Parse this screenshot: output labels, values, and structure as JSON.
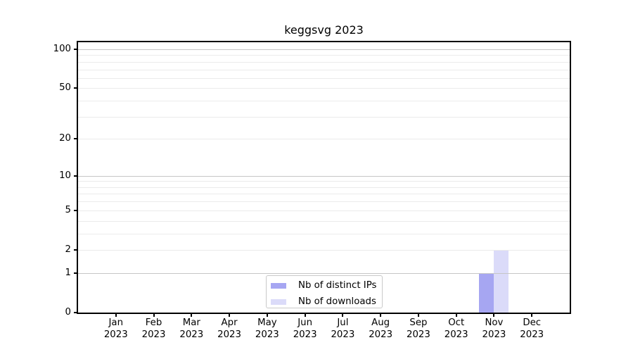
{
  "chart_data": {
    "type": "bar",
    "title": "keggsvg 2023",
    "categories": [
      "Jan 2023",
      "Feb 2023",
      "Mar 2023",
      "Apr 2023",
      "May 2023",
      "Jun 2023",
      "Jul 2023",
      "Aug 2023",
      "Sep 2023",
      "Oct 2023",
      "Nov 2023",
      "Dec 2023"
    ],
    "months": [
      "Jan",
      "Feb",
      "Mar",
      "Apr",
      "May",
      "Jun",
      "Jul",
      "Aug",
      "Sep",
      "Oct",
      "Nov",
      "Dec"
    ],
    "year_label": "2023",
    "series": [
      {
        "name": "Nb of distinct IPs",
        "color": "#a6a6f2",
        "values": [
          0,
          0,
          0,
          0,
          0,
          0,
          0,
          0,
          0,
          0,
          1,
          0
        ]
      },
      {
        "name": "Nb of downloads",
        "color": "#dbdbf9",
        "values": [
          0,
          0,
          0,
          0,
          0,
          0,
          0,
          0,
          0,
          0,
          2,
          0
        ]
      }
    ],
    "xlabel": "",
    "ylabel": "",
    "yscale": "log1p",
    "ylim": [
      0,
      110
    ],
    "yticks": [
      0,
      1,
      2,
      5,
      10,
      20,
      50,
      100
    ],
    "major_gridlines": [
      1,
      10,
      100
    ],
    "minor_gridlines": [
      2,
      3,
      4,
      5,
      6,
      7,
      8,
      9,
      20,
      30,
      40,
      50,
      60,
      70,
      80,
      90
    ],
    "grid": true,
    "legend_position": "lower center",
    "colors": {
      "major_grid": "#c6c6c6",
      "minor_grid": "#ebebeb",
      "spine": "#000000",
      "background": "#ffffff",
      "text": "#000000"
    }
  }
}
